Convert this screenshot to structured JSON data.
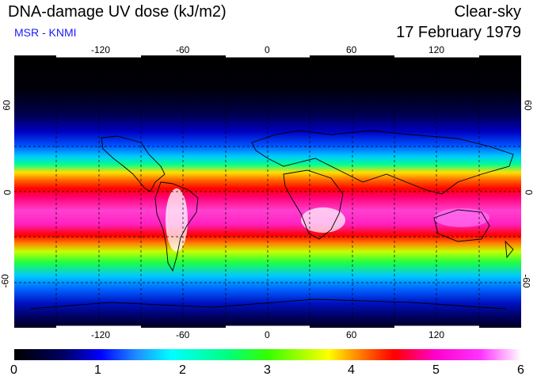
{
  "header": {
    "title": "DNA-damage UV dose (kJ/m2)",
    "source": "MSR - KNMI",
    "sky_condition": "Clear-sky",
    "date": "17 February 1979"
  },
  "map": {
    "lon_ticks": [
      "-120",
      "-60",
      "0",
      "60",
      "120"
    ],
    "lat_ticks_left": [
      "60",
      "0",
      "-60"
    ],
    "lat_ticks_right": [
      "60",
      "0",
      "-60"
    ]
  },
  "colorbar": {
    "labels": [
      "0",
      "1",
      "2",
      "3",
      "4",
      "5",
      "6"
    ],
    "min": 0,
    "max": 6,
    "unit": "kJ/m2"
  },
  "colors": {
    "subtitle": "#1a1aff",
    "grid": "#000000"
  }
}
